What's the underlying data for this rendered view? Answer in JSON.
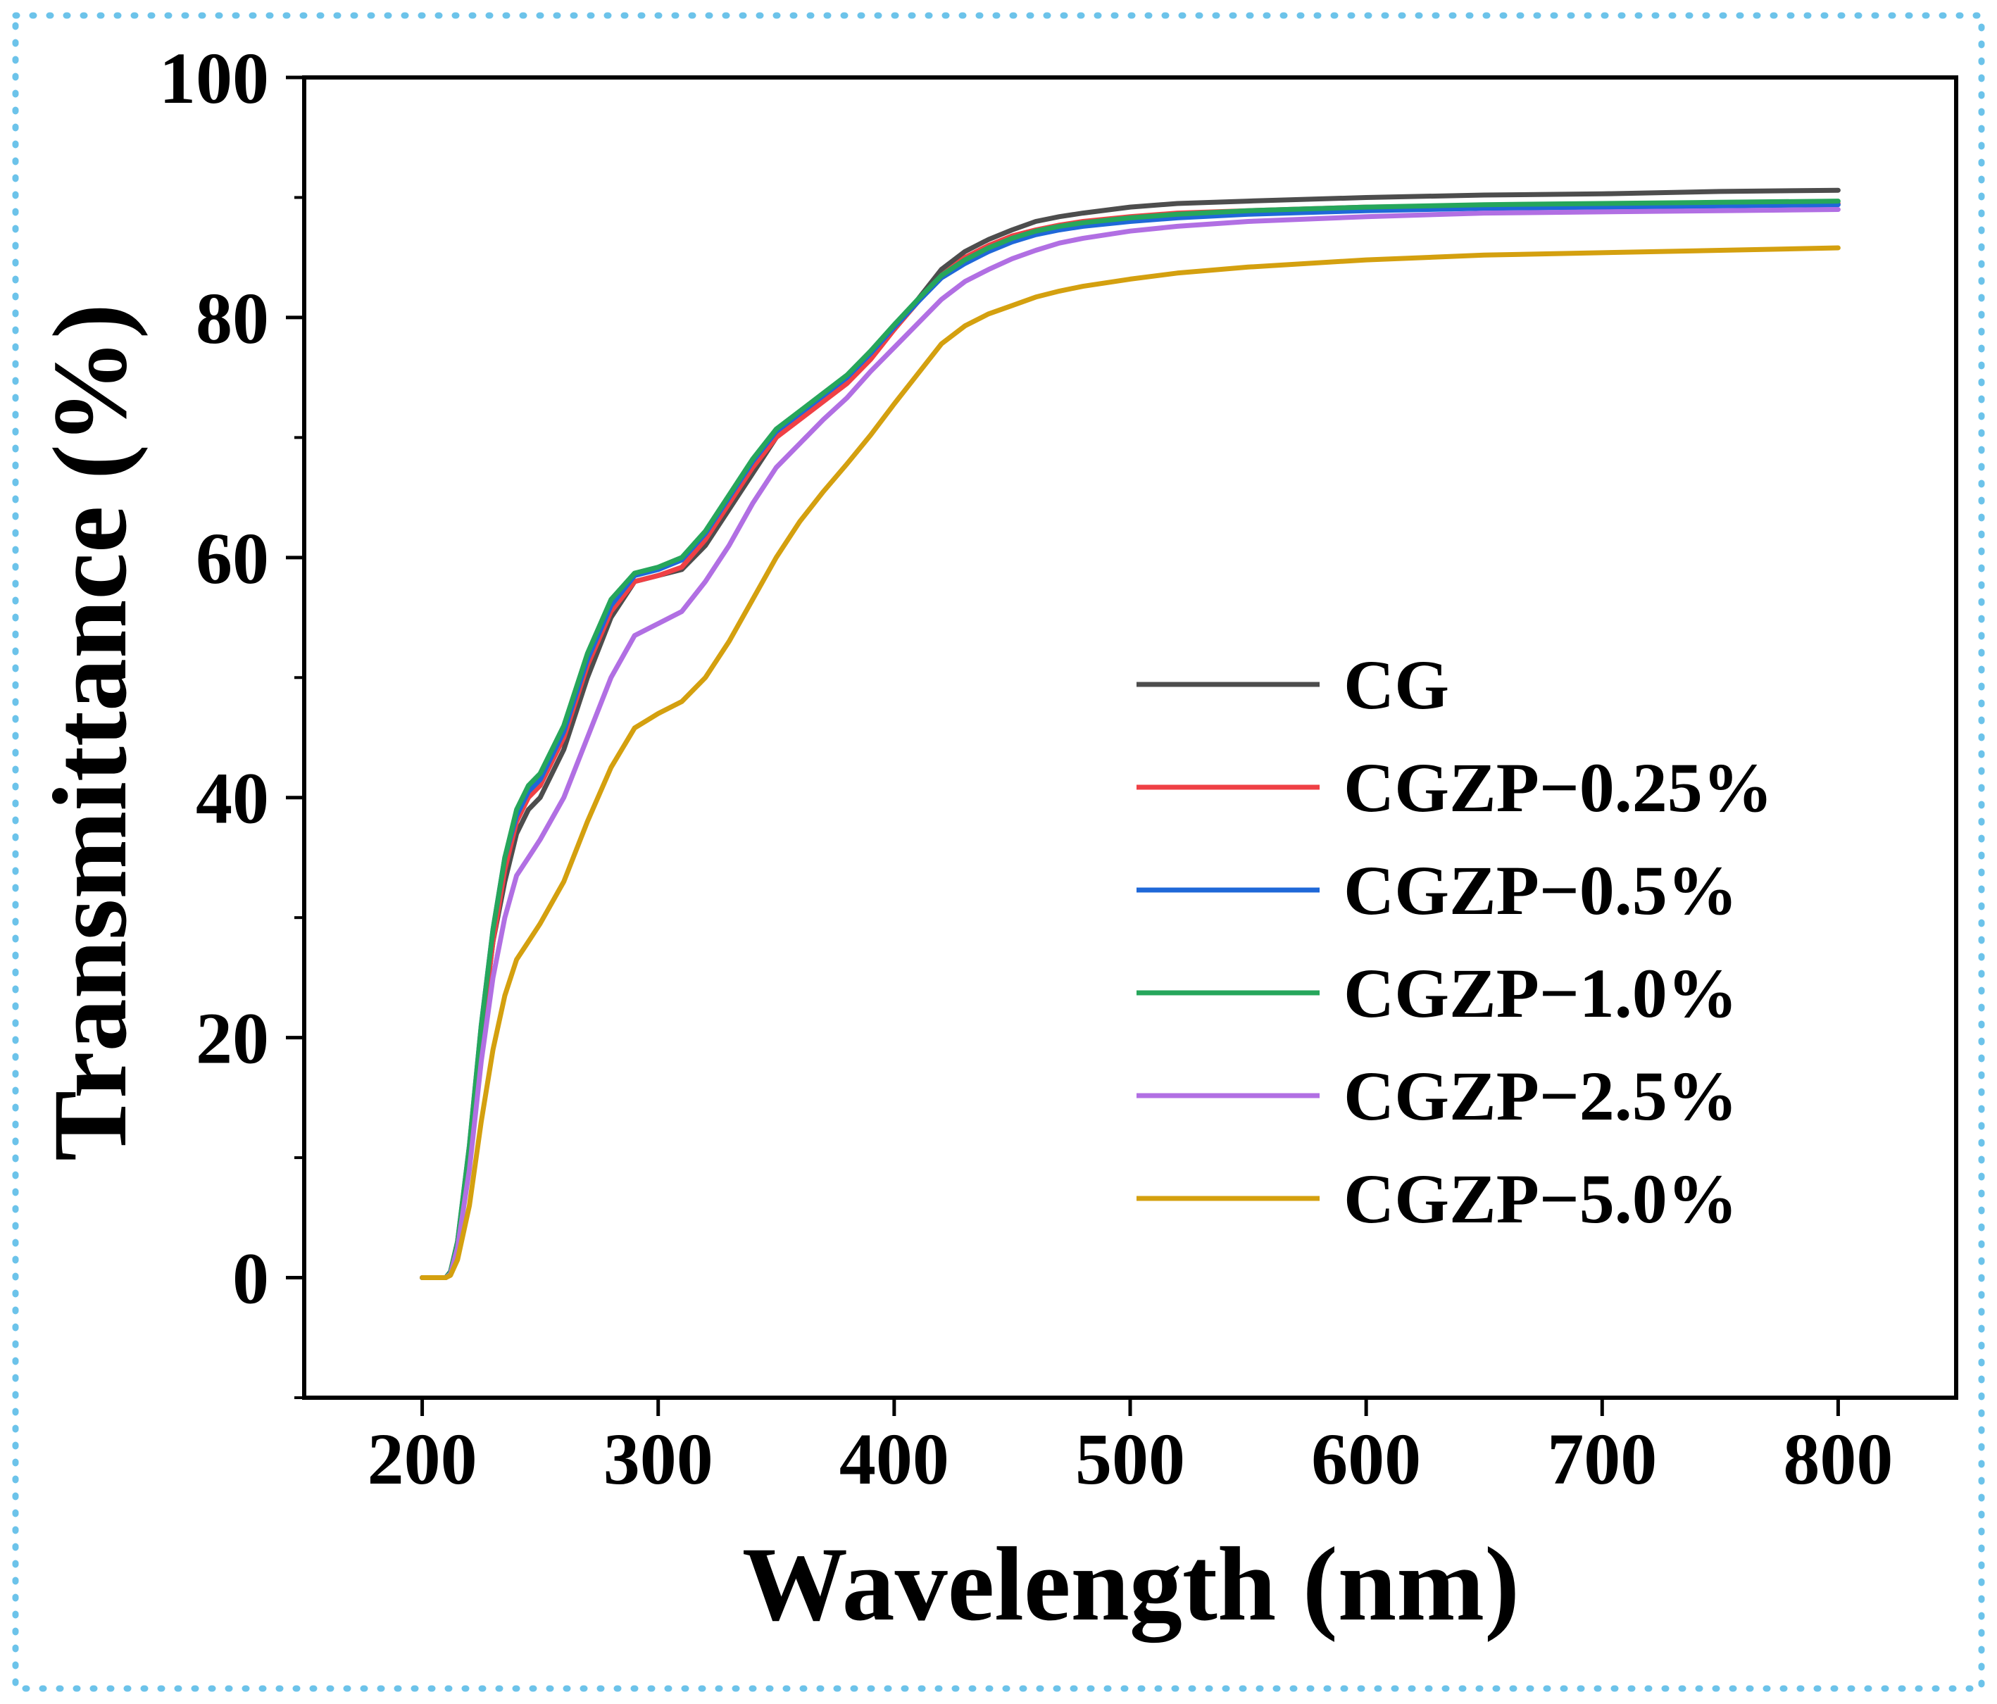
{
  "frame": {
    "border_color": "#6cc3ea"
  },
  "chart_data": {
    "type": "line",
    "title": "",
    "xlabel": "Wavelength (nm)",
    "ylabel": "Transmittance (%)",
    "xlim": [
      150,
      850
    ],
    "ylim": [
      -10,
      100
    ],
    "x_ticks": [
      200,
      300,
      400,
      500,
      600,
      700,
      800
    ],
    "x_tick_labels": [
      "200",
      "300",
      "400",
      "500",
      "600",
      "700",
      "800"
    ],
    "y_ticks": [
      0,
      20,
      40,
      60,
      80,
      100
    ],
    "y_tick_labels": [
      "0",
      "20",
      "40",
      "60",
      "80",
      "100"
    ],
    "grid": false,
    "legend_position": "lower-right",
    "x": [
      200,
      205,
      210,
      212,
      215,
      220,
      225,
      230,
      235,
      240,
      245,
      250,
      260,
      270,
      280,
      290,
      300,
      310,
      320,
      330,
      340,
      350,
      360,
      370,
      380,
      390,
      400,
      410,
      420,
      430,
      440,
      450,
      460,
      470,
      480,
      500,
      520,
      550,
      600,
      650,
      700,
      750,
      800
    ],
    "series": [
      {
        "name": "CG",
        "color": "#4d4d4d",
        "values": [
          0,
          0,
          0,
          0.5,
          3,
          10,
          20,
          28,
          33,
          37,
          39,
          40,
          44,
          50,
          55,
          58,
          58.5,
          59,
          61,
          64,
          67,
          70,
          72,
          73.5,
          75,
          77,
          79,
          81.5,
          84,
          85.5,
          86.5,
          87.3,
          88,
          88.4,
          88.7,
          89.2,
          89.5,
          89.7,
          90.0,
          90.2,
          90.3,
          90.5,
          90.6
        ]
      },
      {
        "name": "CGZP−0.25%",
        "color": "#ef4045",
        "values": [
          0,
          0,
          0,
          0.5,
          3,
          10,
          20,
          28,
          34,
          38,
          40,
          41,
          45,
          51,
          55.5,
          58,
          58.5,
          59.2,
          61.5,
          64.5,
          67.5,
          70,
          71.5,
          73,
          74.5,
          76.5,
          79,
          81.3,
          83.5,
          85,
          86,
          86.8,
          87.3,
          87.7,
          88,
          88.4,
          88.7,
          88.9,
          89.2,
          89.3,
          89.4,
          89.5,
          89.5
        ]
      },
      {
        "name": "CGZP−0.5%",
        "color": "#1f68d8",
        "values": [
          0,
          0,
          0,
          0.5,
          3,
          11,
          21,
          29,
          35,
          38.5,
          40.5,
          41.5,
          45.5,
          51.5,
          56,
          58.5,
          59,
          59.8,
          62,
          65,
          68,
          70.5,
          72,
          73.5,
          75,
          77,
          79.2,
          81.3,
          83.3,
          84.5,
          85.5,
          86.3,
          86.9,
          87.3,
          87.6,
          88,
          88.3,
          88.6,
          88.9,
          89.1,
          89.2,
          89.3,
          89.4
        ]
      },
      {
        "name": "CGZP−1.0%",
        "color": "#26a65b",
        "values": [
          0,
          0,
          0,
          0.5,
          3,
          11,
          21,
          29,
          35,
          39,
          41,
          42,
          46,
          52,
          56.5,
          58.7,
          59.2,
          60,
          62.2,
          65.2,
          68.2,
          70.7,
          72.2,
          73.7,
          75.2,
          77.2,
          79.4,
          81.5,
          83.5,
          84.8,
          85.8,
          86.6,
          87.2,
          87.6,
          87.9,
          88.3,
          88.6,
          88.9,
          89.2,
          89.4,
          89.5,
          89.6,
          89.7
        ]
      },
      {
        "name": "CGZP−2.5%",
        "color": "#b16fe3",
        "values": [
          0,
          0,
          0,
          0.3,
          2.5,
          9,
          18,
          25,
          30,
          33.5,
          35,
          36.5,
          40,
          45,
          50,
          53.5,
          54.5,
          55.5,
          58,
          61,
          64.5,
          67.5,
          69.5,
          71.5,
          73.3,
          75.5,
          77.5,
          79.5,
          81.5,
          83,
          84,
          84.9,
          85.6,
          86.2,
          86.6,
          87.2,
          87.6,
          88,
          88.4,
          88.7,
          88.8,
          88.9,
          89
        ]
      },
      {
        "name": "CGZP−5.0%",
        "color": "#d4a00f",
        "values": [
          0,
          0,
          0,
          0.2,
          1.5,
          6,
          13,
          19,
          23.5,
          26.5,
          28,
          29.5,
          33,
          38,
          42.5,
          45.8,
          47,
          48,
          50,
          53,
          56.5,
          60,
          63,
          65.5,
          67.8,
          70.2,
          72.8,
          75.3,
          77.8,
          79.3,
          80.3,
          81,
          81.7,
          82.2,
          82.6,
          83.2,
          83.7,
          84.2,
          84.8,
          85.2,
          85.4,
          85.6,
          85.8
        ]
      }
    ]
  }
}
